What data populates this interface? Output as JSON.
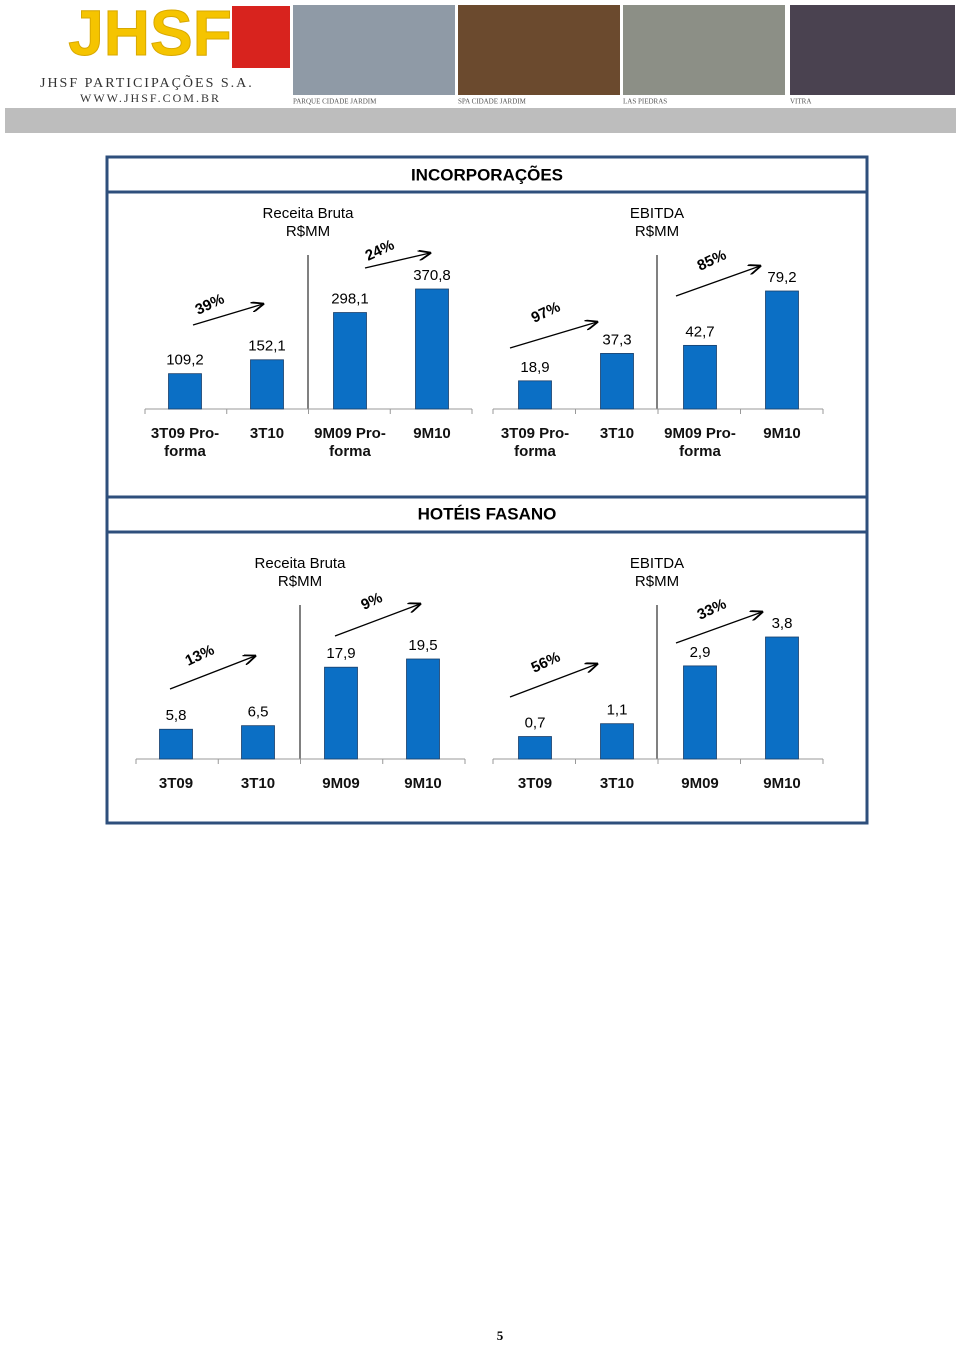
{
  "header": {
    "logo": "JHSF",
    "company": "JHSF PARTICIPAÇÕES S.A.",
    "website": "WWW.JHSF.COM.BR",
    "photos": [
      "PARQUE CIDADE JARDIM",
      "SPA CIDADE JARDIM",
      "LAS PIEDRAS",
      "VITRA"
    ]
  },
  "sections": [
    {
      "title": "INCORPORAÇÕES",
      "charts": [
        {
          "type": "bar",
          "title": "Receita Bruta",
          "subtitle": "R$MM",
          "categories": [
            "3T09 Pro-forma",
            "3T10",
            "9M09 Pro-forma",
            "9M10"
          ],
          "values": [
            109.2,
            152.1,
            298.1,
            370.8
          ],
          "value_labels": [
            "109,2",
            "152,1",
            "298,1",
            "370,8"
          ],
          "color": "#0b6fc5",
          "annotations": [
            "39%",
            "24%"
          ]
        },
        {
          "type": "bar",
          "title": "EBITDA",
          "subtitle": "R$MM",
          "categories": [
            "3T09 Pro-forma",
            "3T10",
            "9M09 Pro-forma",
            "9M10"
          ],
          "values": [
            18.9,
            37.3,
            42.7,
            79.2
          ],
          "value_labels": [
            "18,9",
            "37,3",
            "42,7",
            "79,2"
          ],
          "color": "#0b6fc5",
          "annotations": [
            "97%",
            "85%"
          ]
        }
      ]
    },
    {
      "title": "HOTÉIS FASANO",
      "charts": [
        {
          "type": "bar",
          "title": "Receita Bruta",
          "subtitle": "R$MM",
          "categories": [
            "3T09",
            "3T10",
            "9M09",
            "9M10"
          ],
          "values": [
            5.8,
            6.5,
            17.9,
            19.5
          ],
          "value_labels": [
            "5,8",
            "6,5",
            "17,9",
            "19,5"
          ],
          "color": "#0b6fc5",
          "annotations": [
            "13%",
            "9%"
          ]
        },
        {
          "type": "bar",
          "title": "EBITDA",
          "subtitle": "R$MM",
          "categories": [
            "3T09",
            "3T10",
            "9M09",
            "9M10"
          ],
          "values": [
            0.7,
            1.1,
            2.9,
            3.8
          ],
          "value_labels": [
            "0,7",
            "1,1",
            "2,9",
            "3,8"
          ],
          "color": "#0b6fc5",
          "annotations": [
            "56%",
            "33%"
          ]
        }
      ]
    }
  ],
  "page_number": "5"
}
